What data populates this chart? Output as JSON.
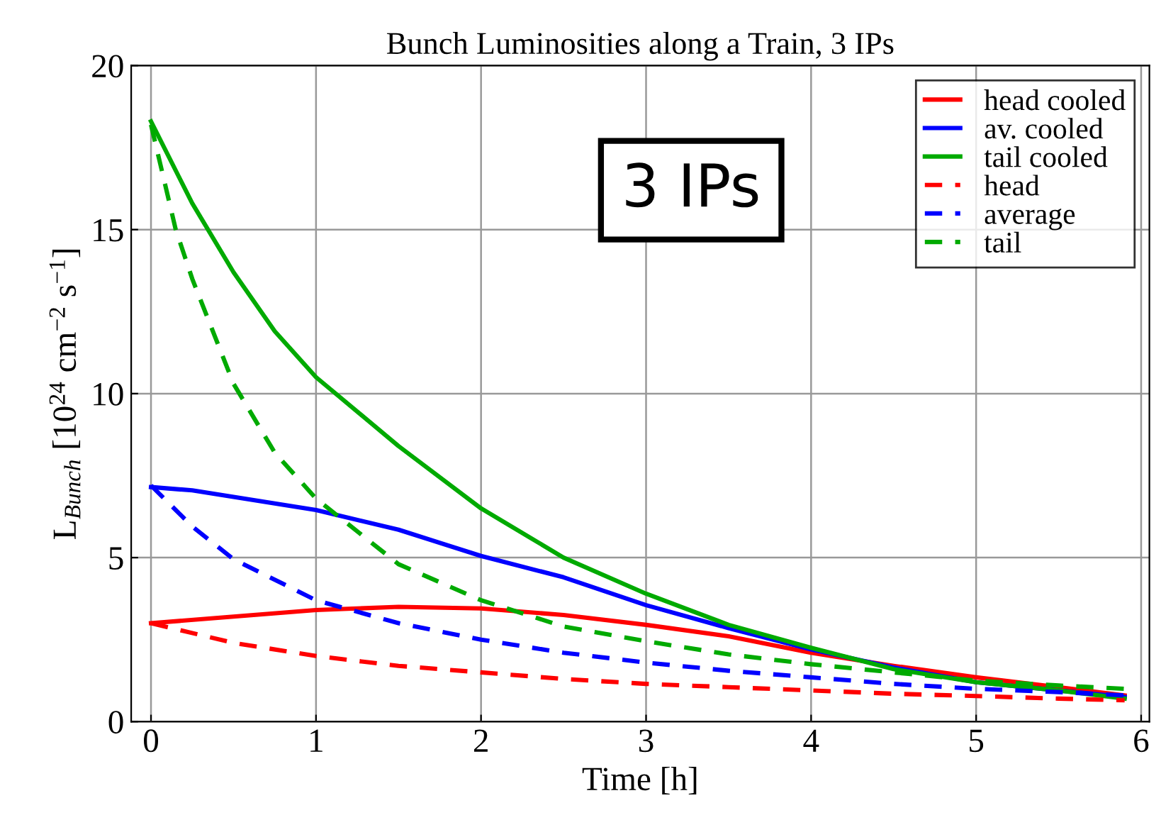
{
  "chart_data": {
    "type": "line",
    "title": "Bunch Luminosities along a Train, 3 IPs",
    "xlabel": "Time [h]",
    "ylabel": "L$_{Bunch}$ [10$^{24}$ cm$^{−2}$ s$^{−1}$]",
    "annotations": [
      "3 IPs"
    ],
    "xlim": [
      -0.12,
      6.05
    ],
    "ylim": [
      0,
      20
    ],
    "xticks": [
      0,
      1,
      2,
      3,
      4,
      5,
      6
    ],
    "yticks": [
      0,
      5,
      10,
      15,
      20
    ],
    "grid": true,
    "legend": "top right",
    "series": [
      {
        "name": "head cooled",
        "color": "#ff0000",
        "line_style": "solid",
        "x": [
          0,
          0.5,
          1,
          1.5,
          2,
          2.5,
          3,
          3.5,
          4,
          4.5,
          5,
          5.5,
          5.9
        ],
        "values": [
          3.0,
          3.2,
          3.4,
          3.5,
          3.45,
          3.25,
          2.95,
          2.6,
          2.1,
          1.7,
          1.35,
          1.05,
          0.8
        ]
      },
      {
        "name": "av. cooled",
        "color": "#0000ff",
        "line_style": "solid",
        "x": [
          0,
          0.25,
          0.5,
          1,
          1.5,
          2,
          2.5,
          3,
          3.5,
          4,
          4.5,
          5,
          5.5,
          5.9
        ],
        "values": [
          7.15,
          7.05,
          6.85,
          6.45,
          5.85,
          5.05,
          4.4,
          3.55,
          2.85,
          2.2,
          1.65,
          1.2,
          0.95,
          0.75
        ]
      },
      {
        "name": "tail cooled",
        "color": "#00aa00",
        "line_style": "solid",
        "x": [
          0,
          0.25,
          0.5,
          0.75,
          1,
          1.5,
          2,
          2.5,
          3,
          3.5,
          4,
          4.5,
          5,
          5.5,
          5.9
        ],
        "values": [
          18.3,
          15.8,
          13.7,
          11.9,
          10.5,
          8.4,
          6.5,
          5.0,
          3.9,
          2.95,
          2.25,
          1.6,
          1.2,
          0.95,
          0.7
        ]
      },
      {
        "name": "head",
        "color": "#ff0000",
        "line_style": "dashed",
        "x": [
          0,
          0.5,
          1,
          1.5,
          2,
          2.5,
          3,
          3.5,
          4,
          4.5,
          5,
          5.5,
          5.9
        ],
        "values": [
          3.0,
          2.4,
          2.0,
          1.7,
          1.5,
          1.3,
          1.15,
          1.05,
          0.95,
          0.85,
          0.78,
          0.7,
          0.65
        ]
      },
      {
        "name": "average",
        "color": "#0000ff",
        "line_style": "dashed",
        "x": [
          0,
          0.25,
          0.5,
          1,
          1.5,
          2,
          2.5,
          3,
          3.5,
          4,
          4.5,
          5,
          5.5,
          5.9
        ],
        "values": [
          7.2,
          5.95,
          4.95,
          3.7,
          3.0,
          2.5,
          2.1,
          1.8,
          1.55,
          1.35,
          1.15,
          1.0,
          0.9,
          0.8
        ]
      },
      {
        "name": "tail",
        "color": "#00aa00",
        "line_style": "dashed",
        "x": [
          0,
          0.15,
          0.25,
          0.5,
          0.75,
          1,
          1.5,
          2,
          2.5,
          3,
          3.5,
          4,
          4.5,
          5,
          5.5,
          5.9
        ],
        "values": [
          18.2,
          15.0,
          13.5,
          10.3,
          8.2,
          6.8,
          4.8,
          3.7,
          2.9,
          2.45,
          2.05,
          1.75,
          1.5,
          1.25,
          1.1,
          1.0
        ]
      }
    ]
  }
}
